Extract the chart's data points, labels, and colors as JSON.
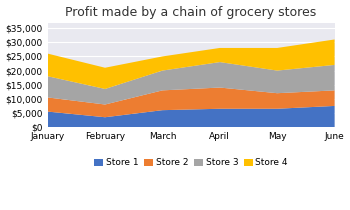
{
  "title": "Profit made by a chain of grocery stores",
  "months": [
    "January",
    "February",
    "March",
    "April",
    "May",
    "June"
  ],
  "store1": [
    5500,
    3500,
    6000,
    6500,
    6500,
    7500
  ],
  "store2": [
    5000,
    4500,
    7000,
    7500,
    5500,
    5500
  ],
  "store3": [
    7500,
    5500,
    7000,
    9000,
    8000,
    9000
  ],
  "store4": [
    8000,
    7500,
    5000,
    5000,
    8000,
    9000
  ],
  "colors": [
    "#4472C4",
    "#ED7D31",
    "#A5A5A5",
    "#FFC000"
  ],
  "labels": [
    "Store 1",
    "Store 2",
    "Store 3",
    "Store 4"
  ],
  "ylim": [
    0,
    37000
  ],
  "yticks": [
    0,
    5000,
    10000,
    15000,
    20000,
    25000,
    30000,
    35000
  ],
  "plot_bg_color": "#E9E9F0",
  "fig_bg_color": "#FFFFFF",
  "title_fontsize": 9,
  "legend_fontsize": 6.5,
  "tick_fontsize": 6.5,
  "grid_color": "#FFFFFF",
  "grid_lw": 0.8
}
